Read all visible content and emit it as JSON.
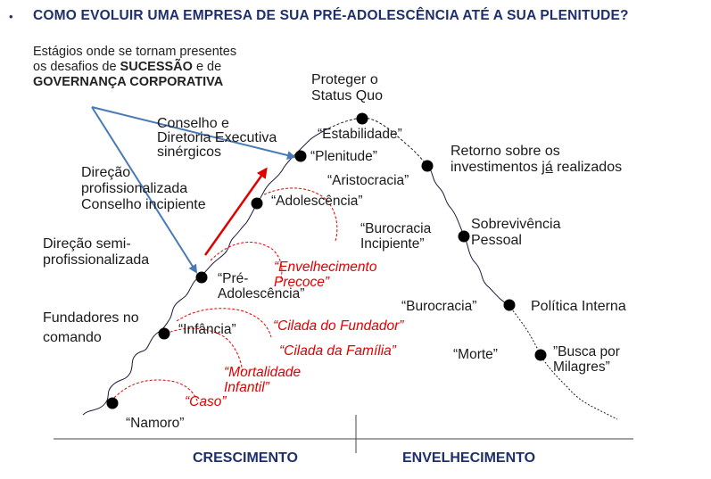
{
  "header": {
    "bullet": "•",
    "title": "COMO EVOLUIR UMA EMPRESA DE SUA PRÉ-ADOLESCÊNCIA ATÉ A SUA PLENITUDE?"
  },
  "note": {
    "line1": "Estágios onde se tornam presentes",
    "line2_pre": "os desafios de ",
    "line2_bold": "SUCESSÃO",
    "line2_post": " e de",
    "line3_bold": "GOVERNANÇA CORPORATIVA"
  },
  "stages": {
    "namoro": "“Namoro”",
    "infancia": "“Infância”",
    "pre_adolescencia_1": "“Pré-",
    "pre_adolescencia_2": "Adolescência”",
    "adolescencia": "“Adolescência”",
    "plenitude": "“Plenitude”",
    "estabilidade": "“Estabilidade”",
    "aristocracia": "“Aristocracia”",
    "burocracia_incipiente_1": "“Burocracia",
    "burocracia_incipiente_2": "Incipiente”",
    "burocracia": "“Burocracia”",
    "morte": "“Morte”",
    "busca_1": "”Busca por",
    "busca_2": "Milagres”"
  },
  "traps": {
    "caso": "“Caso”",
    "mortalidade_1": "“Mortalidade",
    "mortalidade_2": "Infantil”",
    "cilada_familia": "“Cilada da Família”",
    "cilada_fundador": "“Cilada do Fundador”",
    "envelhecimento_1": "“Envelhecimento",
    "envelhecimento_2": "Precoce”"
  },
  "descriptions": {
    "fundadores_1": "Fundadores no",
    "fundadores_2": "comando",
    "semi_1": "Direção semi-",
    "semi_2": "profissionalizada",
    "prof_1": "Direção",
    "prof_2": "profissionalizada",
    "prof_3": "Conselho incipiente",
    "conselho_1": "Conselho e",
    "conselho_2": "Diretoria Executiva",
    "conselho_3": "sinérgicos",
    "proteger_1": "Proteger o",
    "proteger_2": "Status Quo",
    "retorno_1": "Retorno sobre os",
    "retorno_2a": "investimentos ",
    "retorno_2b": "já",
    "retorno_2c": " realizados",
    "sobrevivencia_1": "Sobrevivência",
    "sobrevivencia_2": "Pessoal",
    "politica": "Política Interna"
  },
  "axis": {
    "left": "CRESCIMENTO",
    "right": "ENVELHECIMENTO"
  },
  "colors": {
    "header": "#1f2f6a",
    "arrow_blue": "#4a7ab5",
    "arrow_red": "#e00000",
    "trap_red": "#e00000",
    "curve": "#1a1a3a",
    "dot": "#000000"
  }
}
